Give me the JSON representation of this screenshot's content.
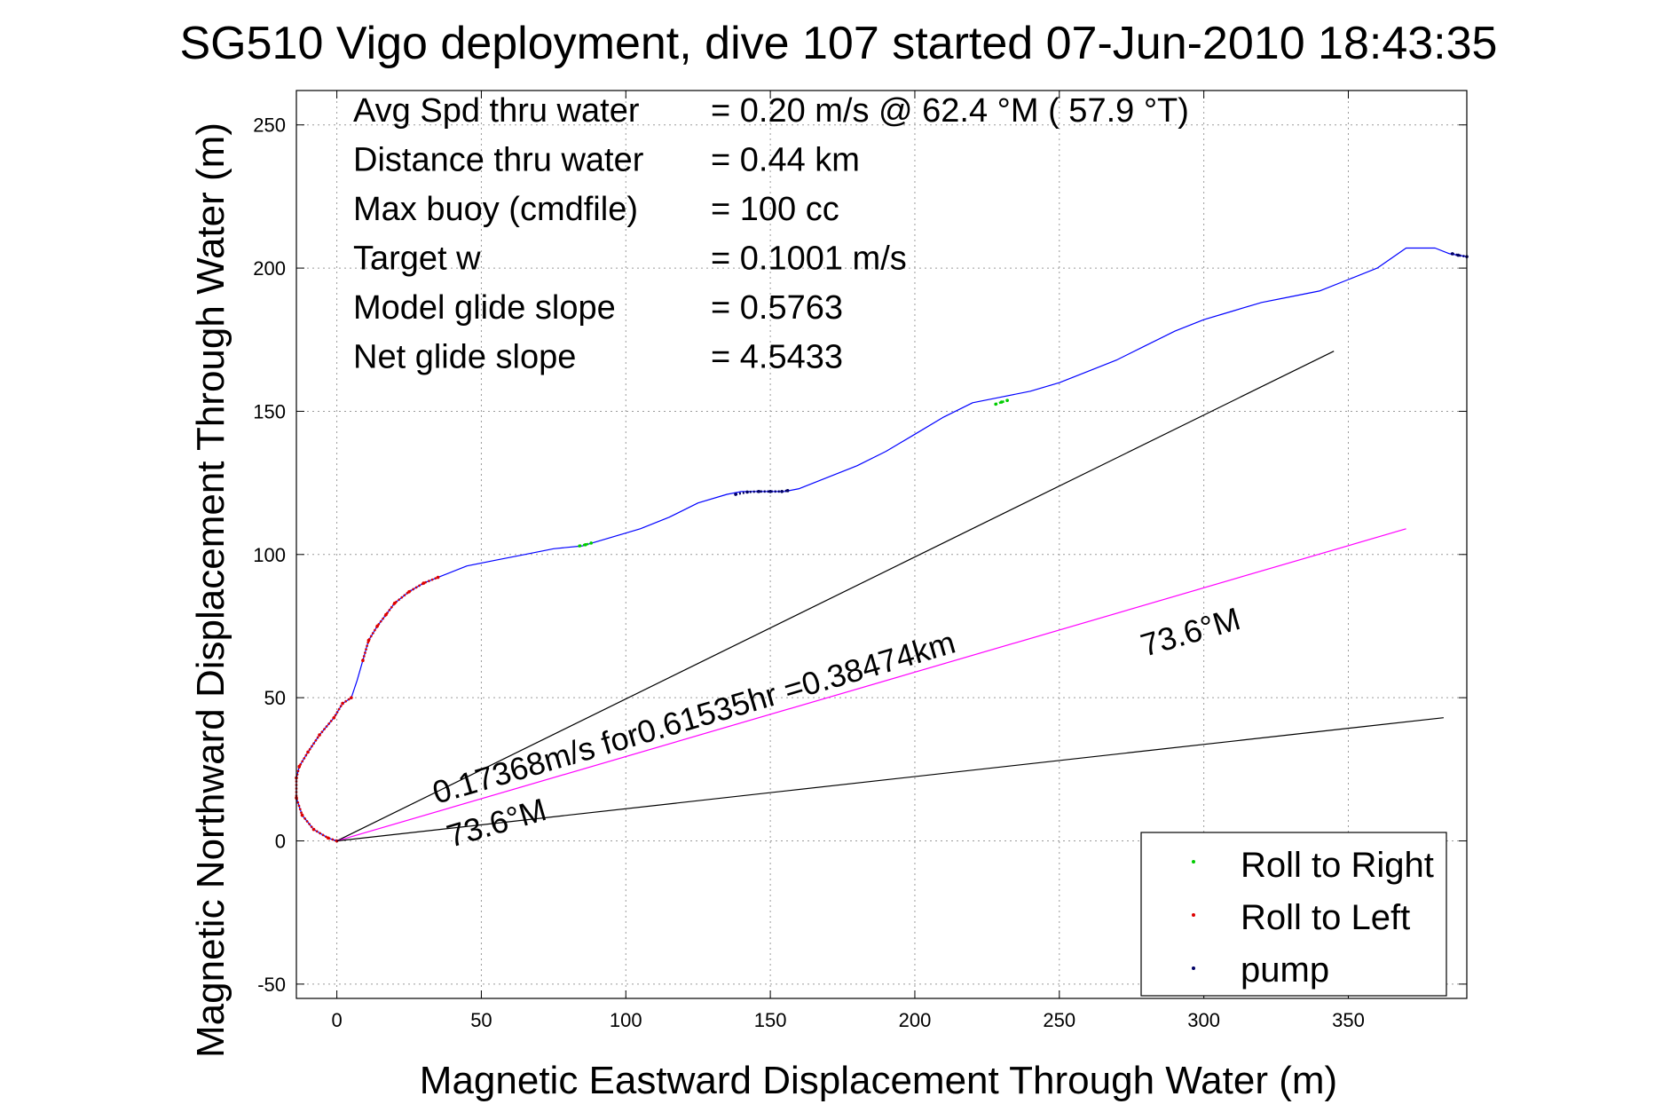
{
  "chart_data": {
    "type": "line",
    "title": "SG510 Vigo deployment, dive 107 started 07-Jun-2010 18:43:35",
    "xlabel": "Magnetic Eastward Displacement Through Water (m)",
    "ylabel": "Magnetic Northward Displacement Through Water (m)",
    "xlim": [
      -14,
      391
    ],
    "ylim": [
      -55,
      262
    ],
    "xticks": [
      0,
      50,
      100,
      150,
      200,
      250,
      300,
      350
    ],
    "yticks": [
      -50,
      0,
      50,
      100,
      150,
      200,
      250
    ],
    "grid": true,
    "legend_position": "bottom-right",
    "info_rows": [
      {
        "label": "Avg Spd thru water",
        "value": "=  0.20 m/s @  62.4 °M ( 57.9 °T)"
      },
      {
        "label": "Distance thru water",
        "value": "=  0.44 km"
      },
      {
        "label": "Max buoy (cmdfile)",
        "value": "= 100 cc"
      },
      {
        "label": "Target w",
        "value": "= 0.1001 m/s"
      },
      {
        "label": "Model glide slope",
        "value": "= 0.5763"
      },
      {
        "label": "Net glide slope",
        "value": "= 4.5433"
      }
    ],
    "annotations": {
      "speed": "0.17368m/s for0.61535hr =0.38474km",
      "heading_upper": "73.6°M",
      "heading_lower": "73.6°M"
    },
    "legend": [
      {
        "label": "Roll to Right",
        "color": "#00cc00"
      },
      {
        "label": "Roll to Left",
        "color": "#dd0000"
      },
      {
        "label": "pump",
        "color": "#000066"
      }
    ],
    "series": [
      {
        "role": "track",
        "color": "#0000ff",
        "x": [
          0,
          -3,
          -8,
          -12,
          -14,
          -14,
          -13,
          -10,
          -6,
          -1,
          2,
          5,
          7,
          9,
          11,
          14,
          17,
          20,
          25,
          30,
          35,
          45,
          55,
          65,
          75,
          85,
          95,
          105,
          115,
          125,
          135,
          140,
          145,
          150,
          155,
          160,
          170,
          180,
          190,
          200,
          210,
          220,
          230,
          240,
          250,
          260,
          270,
          280,
          290,
          300,
          310,
          320,
          330,
          340,
          350,
          360,
          370,
          380,
          385,
          391
        ],
        "y": [
          0,
          1,
          4,
          9,
          15,
          22,
          26,
          31,
          37,
          43,
          48,
          50,
          56,
          63,
          70,
          75,
          79,
          83,
          87,
          90,
          92,
          96,
          98,
          100,
          102,
          103,
          106,
          109,
          113,
          118,
          121,
          122,
          122,
          122,
          122,
          123,
          127,
          131,
          136,
          142,
          148,
          153,
          155,
          157,
          160,
          164,
          168,
          173,
          178,
          182,
          185,
          188,
          190,
          192,
          196,
          200,
          207,
          207,
          205,
          204
        ]
      },
      {
        "role": "roll-left",
        "color": "#dd0000",
        "x": [
          0,
          -3,
          -8,
          -12,
          -14,
          -14,
          -13,
          -10,
          -6,
          -1,
          2,
          5
        ],
        "y": [
          0,
          1,
          4,
          9,
          15,
          22,
          26,
          31,
          37,
          43,
          48,
          50
        ]
      },
      {
        "role": "roll-left",
        "color": "#dd0000",
        "x": [
          9,
          11,
          14,
          17,
          20,
          25,
          30,
          35
        ],
        "y": [
          63,
          70,
          75,
          79,
          83,
          87,
          90,
          92
        ]
      },
      {
        "role": "roll-right",
        "color": "#00cc00",
        "x": [
          84,
          86,
          88
        ],
        "y": [
          103,
          103.4,
          104
        ]
      },
      {
        "role": "pump",
        "color": "#000066",
        "x": [
          138,
          142,
          146,
          150,
          154,
          156
        ],
        "y": [
          121,
          121.8,
          122,
          122,
          122,
          122.3
        ]
      },
      {
        "role": "roll-right",
        "color": "#00cc00",
        "x": [
          228,
          230,
          232
        ],
        "y": [
          152.5,
          153.2,
          153.8
        ]
      },
      {
        "role": "pump",
        "color": "#000066",
        "x": [
          386,
          388,
          391
        ],
        "y": [
          205,
          204.5,
          204
        ]
      },
      {
        "role": "ref-upper",
        "color": "#000000",
        "x": [
          0,
          345
        ],
        "y": [
          0,
          171
        ]
      },
      {
        "role": "net-displacement",
        "color": "#ff00ff",
        "x": [
          0,
          370
        ],
        "y": [
          0,
          109
        ]
      },
      {
        "role": "ref-lower",
        "color": "#000000",
        "x": [
          0,
          383
        ],
        "y": [
          0,
          43
        ]
      }
    ]
  }
}
